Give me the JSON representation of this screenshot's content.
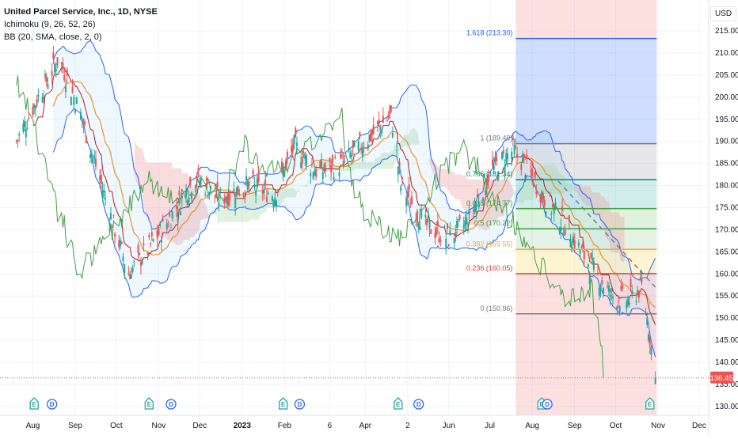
{
  "header": {
    "title": "United Parcel Service, Inc., 1D, NYSE",
    "indicators": [
      "Ichimoku (9, 26, 52, 26)",
      "BB (20, SMA, close, 2, 0)"
    ]
  },
  "currency_button": "USD",
  "price_label": "136.45",
  "colors": {
    "up": "#26a69a",
    "down": "#ef5350",
    "bb": "#2962ff",
    "tenkan": "#b71c1c",
    "kijun": "#f57c00",
    "lagging": "#43a047",
    "cloud_bull": "#a5d6a7",
    "cloud_bear": "#ef9a9a"
  },
  "chart_data": {
    "type": "candlestick",
    "title": "United Parcel Service, Inc., 1D, NYSE",
    "y_axis": {
      "side": "right",
      "range": [
        128,
        222
      ],
      "ticks": [
        215,
        210,
        205,
        200,
        195,
        190,
        185,
        180,
        175,
        170,
        165,
        160,
        155,
        150,
        145,
        140,
        135,
        130
      ],
      "tick_labels": [
        "215.00",
        "210.00",
        "205.00",
        "200.00",
        "195.00",
        "190.00",
        "185.00",
        "180.00",
        "175.00",
        "170.00",
        "165.00",
        "160.00",
        "155.00",
        "150.00",
        "145.00",
        "140.00",
        "135.00",
        "130.00"
      ]
    },
    "x_axis": {
      "labels": [
        "Aug",
        "Sep",
        "Oct",
        "Nov",
        "Dec",
        "2023",
        "Feb",
        "6",
        "Apr",
        "2",
        "Jun",
        "Jul",
        "Aug",
        "Sep",
        "Oct",
        "Nov",
        "Dec"
      ],
      "label_dates": [
        "2022-08-01",
        "2022-09-01",
        "2022-10-01",
        "2022-11-01",
        "2022-12-01",
        "2023-01-01",
        "2023-02-01",
        "2023-03-06",
        "2023-04-01",
        "2023-05-02",
        "2023-06-01",
        "2023-07-01",
        "2023-08-01",
        "2023-09-01",
        "2023-10-01",
        "2023-11-01",
        "2023-12-01"
      ]
    },
    "close_path": [
      {
        "date": "2022-07-20",
        "close": 190
      },
      {
        "date": "2022-08-05",
        "close": 200
      },
      {
        "date": "2022-08-20",
        "close": 209
      },
      {
        "date": "2022-09-05",
        "close": 196
      },
      {
        "date": "2022-09-25",
        "close": 175
      },
      {
        "date": "2022-10-10",
        "close": 160
      },
      {
        "date": "2022-10-25",
        "close": 166
      },
      {
        "date": "2022-11-10",
        "close": 173
      },
      {
        "date": "2022-11-28",
        "close": 182
      },
      {
        "date": "2022-12-15",
        "close": 177
      },
      {
        "date": "2023-01-05",
        "close": 180
      },
      {
        "date": "2023-01-25",
        "close": 178
      },
      {
        "date": "2023-02-08",
        "close": 189
      },
      {
        "date": "2023-02-25",
        "close": 183
      },
      {
        "date": "2023-03-15",
        "close": 185
      },
      {
        "date": "2023-04-01",
        "close": 190
      },
      {
        "date": "2023-04-20",
        "close": 196
      },
      {
        "date": "2023-04-27",
        "close": 180
      },
      {
        "date": "2023-05-15",
        "close": 171
      },
      {
        "date": "2023-06-01",
        "close": 168
      },
      {
        "date": "2023-06-15",
        "close": 172
      },
      {
        "date": "2023-07-01",
        "close": 183
      },
      {
        "date": "2023-07-18",
        "close": 188
      },
      {
        "date": "2023-07-28",
        "close": 184
      },
      {
        "date": "2023-08-10",
        "close": 177
      },
      {
        "date": "2023-08-25",
        "close": 171
      },
      {
        "date": "2023-09-10",
        "close": 163
      },
      {
        "date": "2023-09-28",
        "close": 155
      },
      {
        "date": "2023-10-10",
        "close": 154
      },
      {
        "date": "2023-10-20",
        "close": 157
      },
      {
        "date": "2023-10-25",
        "close": 148
      },
      {
        "date": "2023-10-30",
        "close": 136.45
      }
    ],
    "fibonacci": {
      "start_date": "2023-07-20",
      "end_date": "2023-10-31",
      "levels": [
        {
          "ratio": "1.618",
          "price": 213.3,
          "label": "1.618 (213.30)",
          "color": "#2962ff"
        },
        {
          "ratio": "1",
          "price": 189.49,
          "label": "1 (189.49)",
          "color": "#787b86"
        },
        {
          "ratio": "0.786",
          "price": 181.34,
          "label": "0.786 (181.34)",
          "color": "#00897b"
        },
        {
          "ratio": "0.618",
          "price": 174.77,
          "label": "0.618 (174.77)",
          "color": "#43a047"
        },
        {
          "ratio": "0.5",
          "price": 170.22,
          "label": "0.5 (170.22)",
          "color": "#43a047"
        },
        {
          "ratio": "0.382",
          "price": 165.55,
          "label": "0.382 (165.55)",
          "color": "#f9a825"
        },
        {
          "ratio": "0.236",
          "price": 160.05,
          "label": "0.236 (160.05)",
          "color": "#e53935"
        },
        {
          "ratio": "0",
          "price": 150.96,
          "label": "0 (150.96)",
          "color": "#787b86"
        }
      ]
    },
    "last_price": 136.45,
    "events": [
      {
        "type": "E",
        "date": "2022-08-02"
      },
      {
        "type": "D",
        "date": "2022-08-15"
      },
      {
        "type": "E",
        "date": "2022-10-25"
      },
      {
        "type": "D",
        "date": "2022-11-10"
      },
      {
        "type": "E",
        "date": "2023-01-31"
      },
      {
        "type": "D",
        "date": "2023-02-12"
      },
      {
        "type": "E",
        "date": "2023-04-25"
      },
      {
        "type": "D",
        "date": "2023-05-10"
      },
      {
        "type": "E",
        "date": "2023-08-08"
      },
      {
        "type": "D",
        "date": "2023-08-12"
      },
      {
        "type": "E",
        "date": "2023-10-26"
      }
    ]
  }
}
